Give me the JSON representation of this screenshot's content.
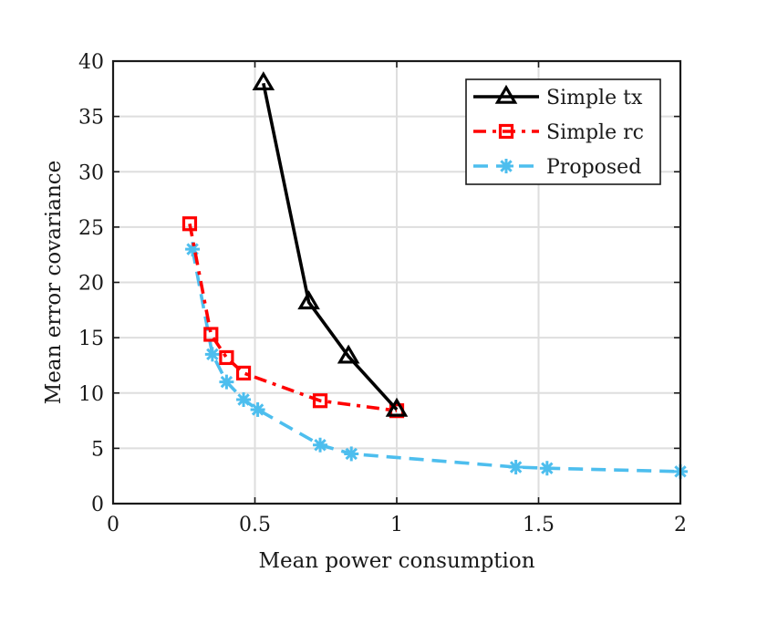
{
  "chart_data": {
    "type": "line",
    "title": "",
    "xlabel": "Mean power consumption",
    "ylabel": "Mean error covariance",
    "xlim": [
      0,
      2
    ],
    "ylim": [
      0,
      40
    ],
    "xticks": [
      0,
      0.5,
      1,
      1.5,
      2
    ],
    "xtick_labels": [
      "0",
      "0.5",
      "1",
      "1.5",
      "2"
    ],
    "yticks": [
      0,
      5,
      10,
      15,
      20,
      25,
      30,
      35,
      40
    ],
    "ytick_labels": [
      "0",
      "5",
      "10",
      "15",
      "20",
      "25",
      "30",
      "35",
      "40"
    ],
    "grid": true,
    "legend_position": "top-right",
    "series": [
      {
        "name": "Simple tx",
        "color": "#000000",
        "line_style": "solid",
        "marker": "triangle",
        "x": [
          0.53,
          0.69,
          0.83,
          1.0
        ],
        "y": [
          38.0,
          18.2,
          13.3,
          8.5
        ]
      },
      {
        "name": "Simple rc",
        "color": "#ff0000",
        "line_style": "dashdot",
        "marker": "square",
        "x": [
          0.27,
          0.345,
          0.4,
          0.46,
          0.73,
          1.0
        ],
        "y": [
          25.3,
          15.3,
          13.2,
          11.8,
          9.3,
          8.4
        ]
      },
      {
        "name": "Proposed",
        "color": "#4dbeee",
        "line_style": "dashed",
        "marker": "asterisk",
        "x": [
          0.28,
          0.35,
          0.4,
          0.46,
          0.51,
          0.73,
          0.84,
          1.42,
          1.53,
          2.0
        ],
        "y": [
          23.0,
          13.5,
          11.0,
          9.4,
          8.5,
          5.3,
          4.5,
          3.3,
          3.2,
          2.9
        ]
      }
    ]
  }
}
